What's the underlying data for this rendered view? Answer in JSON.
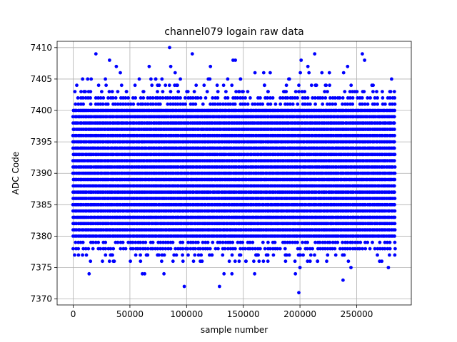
{
  "chart_data": {
    "type": "scatter",
    "title": "channel079 logain raw data",
    "xlabel": "sample number",
    "ylabel": "ADC Code",
    "xlim": [
      -14200,
      298200
    ],
    "ylim": [
      7369.05,
      7411.0
    ],
    "x_ticks": [
      0,
      50000,
      100000,
      150000,
      200000,
      250000
    ],
    "x_tick_labels": [
      "0",
      "50000",
      "100000",
      "150000",
      "200000",
      "250000"
    ],
    "y_ticks": [
      7370,
      7375,
      7380,
      7385,
      7390,
      7395,
      7400,
      7405,
      7410
    ],
    "y_tick_labels": [
      "7370",
      "7375",
      "7380",
      "7385",
      "7390",
      "7395",
      "7400",
      "7405",
      "7410"
    ],
    "grid": true,
    "marker_color": "#0000ff",
    "series": [
      {
        "x_range": [
          0,
          284000
        ],
        "dense_band": [
          7378,
          7402
        ],
        "sparse_band": [
          7376,
          7406
        ],
        "outliers": [
          {
            "x": 20000,
            "y": 7409
          },
          {
            "x": 85000,
            "y": 7410
          },
          {
            "x": 105000,
            "y": 7409
          },
          {
            "x": 255000,
            "y": 7409
          },
          {
            "x": 213000,
            "y": 7409
          },
          {
            "x": 32000,
            "y": 7408
          },
          {
            "x": 141000,
            "y": 7408
          },
          {
            "x": 143000,
            "y": 7408
          },
          {
            "x": 201000,
            "y": 7408
          },
          {
            "x": 257000,
            "y": 7408
          },
          {
            "x": 38000,
            "y": 7407
          },
          {
            "x": 67000,
            "y": 7407
          },
          {
            "x": 86000,
            "y": 7407
          },
          {
            "x": 121000,
            "y": 7407
          },
          {
            "x": 207000,
            "y": 7407
          },
          {
            "x": 242000,
            "y": 7407
          },
          {
            "x": 14000,
            "y": 7374
          },
          {
            "x": 61000,
            "y": 7374
          },
          {
            "x": 63000,
            "y": 7374
          },
          {
            "x": 80000,
            "y": 7374
          },
          {
            "x": 133000,
            "y": 7374
          },
          {
            "x": 140000,
            "y": 7374
          },
          {
            "x": 160000,
            "y": 7374
          },
          {
            "x": 196000,
            "y": 7374
          },
          {
            "x": 98000,
            "y": 7372
          },
          {
            "x": 129000,
            "y": 7372
          },
          {
            "x": 238000,
            "y": 7373
          },
          {
            "x": 199000,
            "y": 7371
          },
          {
            "x": 200000,
            "y": 7375
          },
          {
            "x": 278000,
            "y": 7375
          },
          {
            "x": 245000,
            "y": 7375
          }
        ]
      }
    ]
  }
}
